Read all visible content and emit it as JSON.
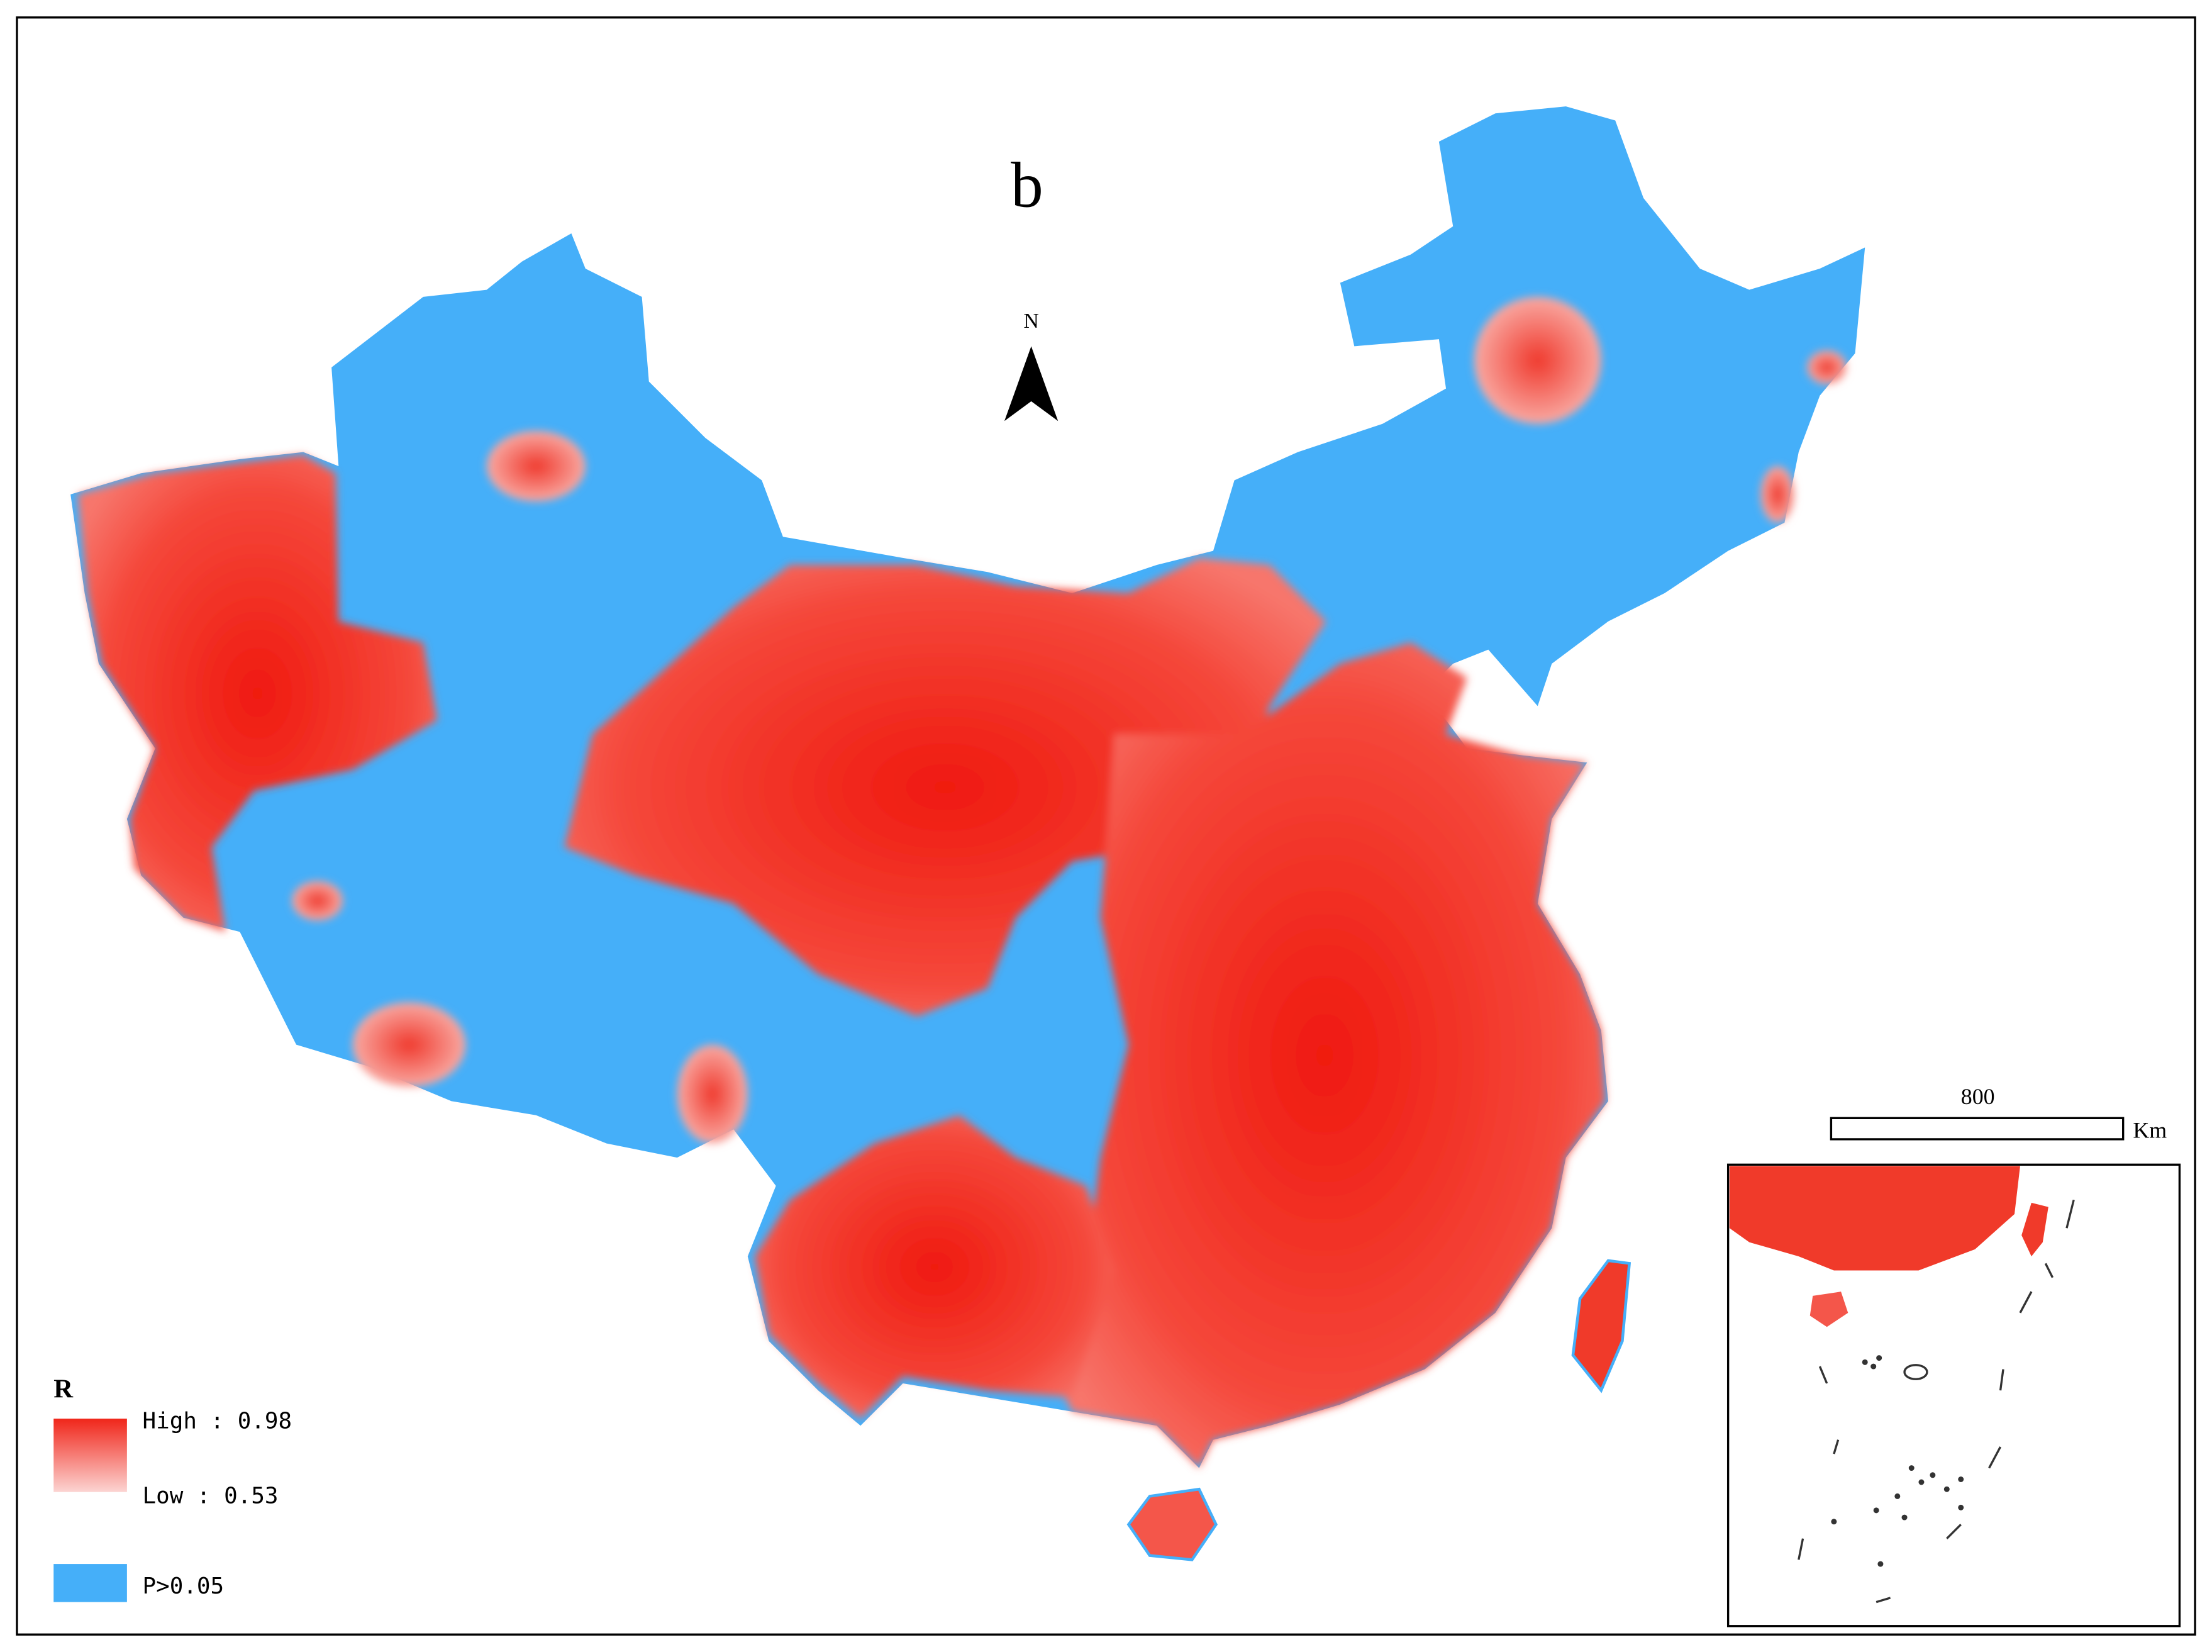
{
  "title": "b",
  "north_arrow": "N",
  "scale_bar": {
    "value": "800",
    "unit": "Km"
  },
  "legend": {
    "title": "R",
    "high": "High : 0.98",
    "low": "Low : 0.53",
    "insignificant": "P>0.05"
  }
}
